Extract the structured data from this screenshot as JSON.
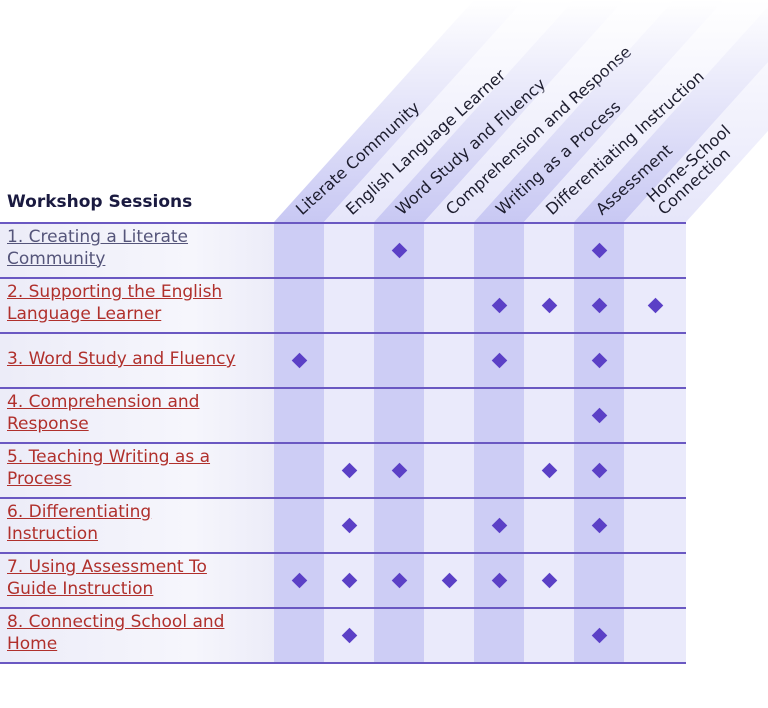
{
  "header": {
    "title": "Workshop Sessions"
  },
  "columns": [
    "Literate Community",
    "English Language Learner",
    "Word Study and Fluency",
    "Comprehension and Response",
    "Writing as a Process",
    "Differentiating Instruction",
    "Assessment",
    "Home-School Connection"
  ],
  "column_lines": [
    [
      "Literate Community"
    ],
    [
      "English Language Learner"
    ],
    [
      "Word Study and Fluency"
    ],
    [
      "Comprehension and Response"
    ],
    [
      "Writing as a Process"
    ],
    [
      "Differentiating Instruction"
    ],
    [
      "Assessment"
    ],
    [
      "Home-School",
      "Connection"
    ]
  ],
  "rows": [
    {
      "line1": "1. Creating a Literate",
      "line2": "Community",
      "visited": true,
      "marks": [
        0,
        0,
        1,
        0,
        0,
        0,
        1,
        0
      ]
    },
    {
      "line1": "2. Supporting the English",
      "line2": "Language Learner",
      "visited": false,
      "marks": [
        0,
        0,
        0,
        0,
        1,
        1,
        1,
        1
      ]
    },
    {
      "line1": "3. Word Study and Fluency",
      "line2": "",
      "visited": false,
      "marks": [
        1,
        0,
        0,
        0,
        1,
        0,
        1,
        0
      ]
    },
    {
      "line1": "4. Comprehension and",
      "line2": "Response",
      "visited": false,
      "marks": [
        0,
        0,
        0,
        0,
        0,
        0,
        1,
        0
      ]
    },
    {
      "line1": "5. Teaching Writing as a",
      "line2": "Process",
      "visited": false,
      "marks": [
        0,
        1,
        1,
        0,
        0,
        1,
        1,
        0
      ]
    },
    {
      "line1": "6. Differentiating",
      "line2": "Instruction",
      "visited": false,
      "marks": [
        0,
        1,
        0,
        0,
        1,
        0,
        1,
        0
      ]
    },
    {
      "line1": "7. Using Assessment To",
      "line2": "Guide Instruction",
      "visited": false,
      "marks": [
        1,
        1,
        1,
        1,
        1,
        1,
        0,
        0
      ]
    },
    {
      "line1": "8. Connecting School and",
      "line2": "Home",
      "visited": false,
      "marks": [
        0,
        1,
        0,
        0,
        0,
        0,
        1,
        0
      ]
    }
  ],
  "colors": {
    "dark_column": "#cdcdf5",
    "light_column": "#eaeafb",
    "diamond": "#5b40c6",
    "rule": "#6a58c2",
    "link": "#b0302c",
    "visited_link": "#55557a"
  }
}
